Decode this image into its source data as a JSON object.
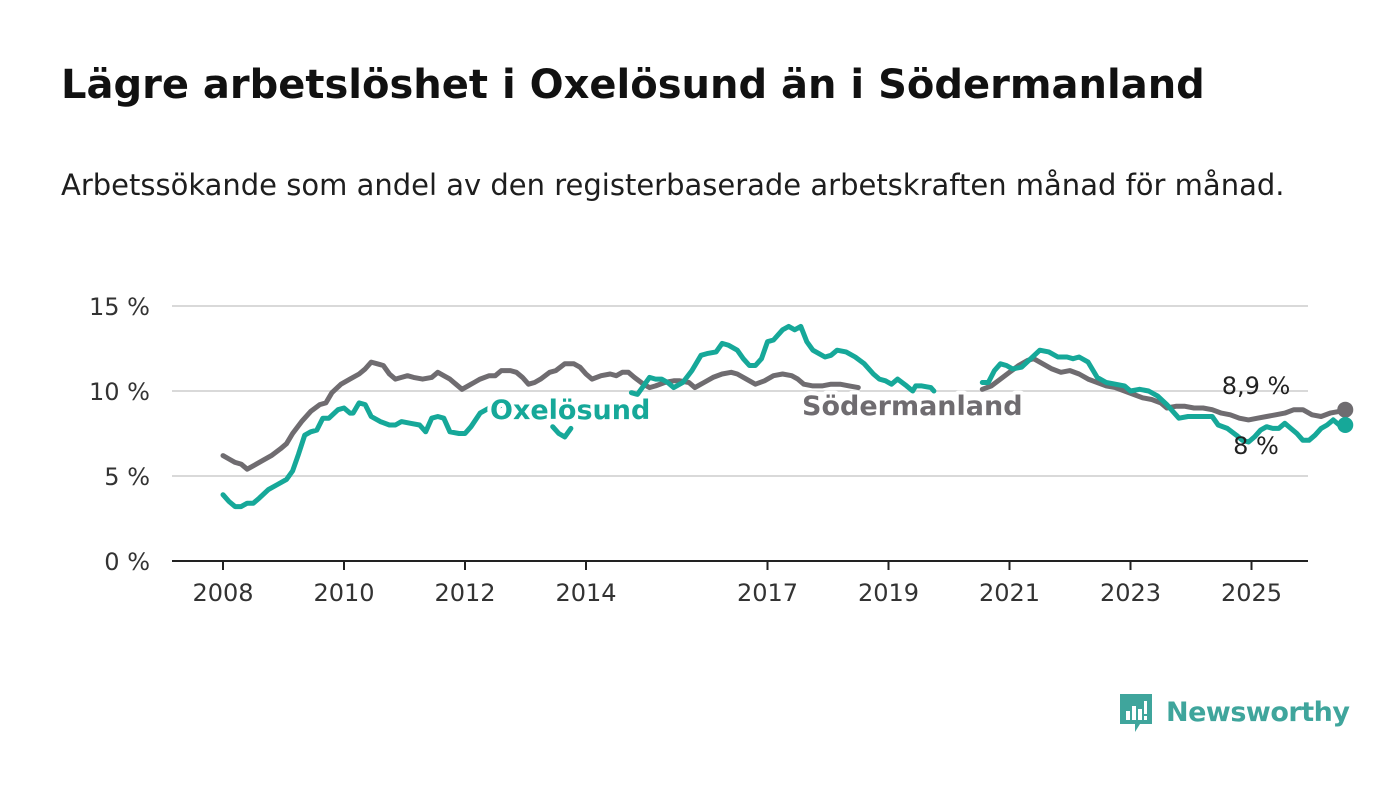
{
  "title": "Lägre arbetslöshet i Oxelösund än i Södermanland",
  "subtitle": "Arbetssökande som andel av den registerbaserade arbetskraften månad för månad.",
  "brand": {
    "name": "Newsworthy"
  },
  "colors": {
    "oxelosund": "#16a899",
    "sodermanland": "#6f6c70",
    "grid": "#d9d9d9",
    "axis": "#222222",
    "brand": "#3fa59c"
  },
  "chart_data": {
    "type": "line",
    "title": "Lägre arbetslöshet i Oxelösund än i Södermanland",
    "xlabel": "",
    "ylabel": "",
    "ylim": [
      0,
      15
    ],
    "xlim": [
      2007.75,
      2025.95
    ],
    "y_ticks": [
      {
        "value": 0,
        "label": "0 %"
      },
      {
        "value": 5,
        "label": "5 %"
      },
      {
        "value": 10,
        "label": "10 %"
      },
      {
        "value": 15,
        "label": "15 %"
      }
    ],
    "x_ticks": [
      "2008",
      "2010",
      "2012",
      "2014",
      "2017",
      "2019",
      "2021",
      "2023",
      "2025"
    ],
    "grid": true,
    "series": [
      {
        "name": "Oxelösund",
        "color": "#16a899",
        "points": [
          [
            2008.0,
            3.9
          ],
          [
            2008.1,
            3.5
          ],
          [
            2008.2,
            3.2
          ],
          [
            2008.3,
            3.2
          ],
          [
            2008.4,
            3.4
          ],
          [
            2008.5,
            3.4
          ],
          [
            2008.6,
            3.7
          ],
          [
            2008.75,
            4.2
          ],
          [
            2008.9,
            4.5
          ],
          [
            2009.05,
            4.8
          ],
          [
            2009.15,
            5.3
          ],
          [
            2009.25,
            6.3
          ],
          [
            2009.35,
            7.4
          ],
          [
            2009.45,
            7.6
          ],
          [
            2009.55,
            7.7
          ],
          [
            2009.65,
            8.4
          ],
          [
            2009.75,
            8.4
          ],
          [
            2009.9,
            8.9
          ],
          [
            2010.0,
            9.0
          ],
          [
            2010.1,
            8.7
          ],
          [
            2010.15,
            8.7
          ],
          [
            2010.25,
            9.3
          ],
          [
            2010.35,
            9.2
          ],
          [
            2010.45,
            8.5
          ],
          [
            2010.6,
            8.2
          ],
          [
            2010.75,
            8.0
          ],
          [
            2010.85,
            8.0
          ],
          [
            2010.95,
            8.2
          ],
          [
            2011.1,
            8.1
          ],
          [
            2011.25,
            8.0
          ],
          [
            2011.35,
            7.6
          ],
          [
            2011.45,
            8.4
          ],
          [
            2011.55,
            8.5
          ],
          [
            2011.65,
            8.4
          ],
          [
            2011.75,
            7.6
          ],
          [
            2011.9,
            7.5
          ],
          [
            2012.0,
            7.5
          ],
          [
            2012.1,
            7.9
          ],
          [
            2012.25,
            8.7
          ],
          [
            2012.4,
            9.0
          ],
          [
            2012.5,
            8.9
          ],
          [
            2012.6,
            9.2
          ],
          [
            2012.7,
            9.1
          ],
          [
            2012.8,
            8.6
          ],
          [
            2012.9,
            8.5
          ],
          [
            null,
            null
          ],
          [
            2013.45,
            7.9
          ],
          [
            2013.55,
            7.5
          ],
          [
            2013.65,
            7.3
          ],
          [
            2013.75,
            7.8
          ],
          [
            null,
            null
          ],
          [
            2014.75,
            9.9
          ],
          [
            2014.85,
            9.8
          ],
          [
            2014.95,
            10.3
          ],
          [
            2015.05,
            10.8
          ],
          [
            2015.15,
            10.7
          ],
          [
            2015.25,
            10.7
          ],
          [
            2015.35,
            10.5
          ],
          [
            2015.45,
            10.2
          ],
          [
            2015.6,
            10.5
          ],
          [
            2015.75,
            11.2
          ],
          [
            2015.9,
            12.1
          ],
          [
            2016.0,
            12.2
          ],
          [
            2016.15,
            12.3
          ],
          [
            2016.25,
            12.8
          ],
          [
            2016.35,
            12.7
          ],
          [
            2016.5,
            12.4
          ],
          [
            2016.6,
            11.9
          ],
          [
            2016.7,
            11.5
          ],
          [
            2016.8,
            11.5
          ],
          [
            2016.9,
            11.9
          ],
          [
            2017.0,
            12.9
          ],
          [
            2017.1,
            13.0
          ],
          [
            2017.25,
            13.6
          ],
          [
            2017.35,
            13.8
          ],
          [
            2017.45,
            13.6
          ],
          [
            2017.55,
            13.8
          ],
          [
            2017.65,
            12.9
          ],
          [
            2017.75,
            12.4
          ],
          [
            2017.85,
            12.2
          ],
          [
            2017.95,
            12.0
          ],
          [
            2018.05,
            12.1
          ],
          [
            2018.15,
            12.4
          ],
          [
            2018.3,
            12.3
          ],
          [
            2018.45,
            12.0
          ],
          [
            2018.6,
            11.6
          ],
          [
            2018.75,
            11.0
          ],
          [
            2018.85,
            10.7
          ],
          [
            2018.95,
            10.6
          ],
          [
            2019.05,
            10.4
          ],
          [
            2019.15,
            10.7
          ],
          [
            2019.3,
            10.3
          ],
          [
            2019.4,
            10.0
          ],
          [
            2019.45,
            10.3
          ],
          [
            2019.55,
            10.3
          ],
          [
            2019.7,
            10.2
          ],
          [
            2019.75,
            10.0
          ],
          [
            null,
            null
          ],
          [
            2020.55,
            10.5
          ],
          [
            2020.65,
            10.5
          ],
          [
            2020.75,
            11.2
          ],
          [
            2020.85,
            11.6
          ],
          [
            2020.95,
            11.5
          ],
          [
            2021.05,
            11.3
          ],
          [
            2021.2,
            11.4
          ],
          [
            2021.35,
            11.9
          ],
          [
            2021.5,
            12.4
          ],
          [
            2021.65,
            12.3
          ],
          [
            2021.8,
            12.0
          ],
          [
            2021.95,
            12.0
          ],
          [
            2022.05,
            11.9
          ],
          [
            2022.15,
            12.0
          ],
          [
            2022.3,
            11.7
          ],
          [
            2022.45,
            10.8
          ],
          [
            2022.6,
            10.5
          ],
          [
            2022.75,
            10.4
          ],
          [
            2022.9,
            10.3
          ],
          [
            2023.0,
            10.0
          ],
          [
            2023.15,
            10.1
          ],
          [
            2023.3,
            10.0
          ],
          [
            2023.45,
            9.7
          ],
          [
            2023.6,
            9.2
          ],
          [
            2023.7,
            8.8
          ],
          [
            2023.8,
            8.4
          ],
          [
            2023.95,
            8.5
          ],
          [
            2024.1,
            8.5
          ],
          [
            2024.25,
            8.5
          ],
          [
            2024.35,
            8.5
          ],
          [
            2024.45,
            8.0
          ],
          [
            2024.6,
            7.8
          ],
          [
            2024.75,
            7.4
          ],
          [
            2024.85,
            7.1
          ],
          [
            2024.95,
            7.0
          ],
          [
            2025.05,
            7.3
          ],
          [
            2025.15,
            7.7
          ],
          [
            2025.25,
            7.9
          ],
          [
            2025.35,
            7.8
          ],
          [
            2025.45,
            7.8
          ],
          [
            2025.55,
            8.1
          ],
          [
            2025.65,
            7.8
          ],
          [
            2025.75,
            7.5
          ],
          [
            2025.85,
            7.1
          ],
          [
            2025.95,
            7.1
          ],
          [
            2026.05,
            7.4
          ],
          [
            2026.15,
            7.8
          ],
          [
            2026.25,
            8.0
          ],
          [
            2026.35,
            8.3
          ],
          [
            2026.45,
            8.0
          ],
          [
            2026.55,
            8.0
          ]
        ],
        "label": "Oxelösund",
        "last_value_label": "8 %"
      },
      {
        "name": "Södermanland",
        "color": "#6f6c70",
        "points": [
          [
            2008.0,
            6.2
          ],
          [
            2008.1,
            6.0
          ],
          [
            2008.2,
            5.8
          ],
          [
            2008.3,
            5.7
          ],
          [
            2008.4,
            5.4
          ],
          [
            2008.5,
            5.6
          ],
          [
            2008.65,
            5.9
          ],
          [
            2008.8,
            6.2
          ],
          [
            2008.95,
            6.6
          ],
          [
            2009.05,
            6.9
          ],
          [
            2009.15,
            7.5
          ],
          [
            2009.3,
            8.2
          ],
          [
            2009.45,
            8.8
          ],
          [
            2009.6,
            9.2
          ],
          [
            2009.7,
            9.3
          ],
          [
            2009.8,
            9.9
          ],
          [
            2009.95,
            10.4
          ],
          [
            2010.1,
            10.7
          ],
          [
            2010.25,
            11.0
          ],
          [
            2010.35,
            11.3
          ],
          [
            2010.45,
            11.7
          ],
          [
            2010.55,
            11.6
          ],
          [
            2010.65,
            11.5
          ],
          [
            2010.75,
            11.0
          ],
          [
            2010.85,
            10.7
          ],
          [
            2010.95,
            10.8
          ],
          [
            2011.05,
            10.9
          ],
          [
            2011.15,
            10.8
          ],
          [
            2011.3,
            10.7
          ],
          [
            2011.45,
            10.8
          ],
          [
            2011.55,
            11.1
          ],
          [
            2011.65,
            10.9
          ],
          [
            2011.75,
            10.7
          ],
          [
            2011.85,
            10.4
          ],
          [
            2011.95,
            10.1
          ],
          [
            2012.05,
            10.3
          ],
          [
            2012.15,
            10.5
          ],
          [
            2012.25,
            10.7
          ],
          [
            2012.4,
            10.9
          ],
          [
            2012.5,
            10.9
          ],
          [
            2012.6,
            11.2
          ],
          [
            2012.75,
            11.2
          ],
          [
            2012.85,
            11.1
          ],
          [
            2012.95,
            10.8
          ],
          [
            2013.05,
            10.4
          ],
          [
            2013.15,
            10.5
          ],
          [
            2013.25,
            10.7
          ],
          [
            2013.4,
            11.1
          ],
          [
            2013.5,
            11.2
          ],
          [
            2013.65,
            11.6
          ],
          [
            2013.8,
            11.6
          ],
          [
            2013.9,
            11.4
          ],
          [
            2014.0,
            11.0
          ],
          [
            2014.1,
            10.7
          ],
          [
            2014.25,
            10.9
          ],
          [
            2014.4,
            11.0
          ],
          [
            2014.5,
            10.9
          ],
          [
            2014.6,
            11.1
          ],
          [
            2014.7,
            11.1
          ],
          [
            2014.8,
            10.8
          ],
          [
            2014.95,
            10.4
          ],
          [
            2015.05,
            10.2
          ],
          [
            2015.15,
            10.3
          ],
          [
            2015.3,
            10.5
          ],
          [
            2015.45,
            10.6
          ],
          [
            2015.55,
            10.6
          ],
          [
            2015.7,
            10.5
          ],
          [
            2015.8,
            10.2
          ],
          [
            2015.95,
            10.5
          ],
          [
            2016.1,
            10.8
          ],
          [
            2016.25,
            11.0
          ],
          [
            2016.4,
            11.1
          ],
          [
            2016.5,
            11.0
          ],
          [
            2016.65,
            10.7
          ],
          [
            2016.8,
            10.4
          ],
          [
            2016.95,
            10.6
          ],
          [
            2017.1,
            10.9
          ],
          [
            2017.25,
            11.0
          ],
          [
            2017.4,
            10.9
          ],
          [
            2017.5,
            10.7
          ],
          [
            2017.6,
            10.4
          ],
          [
            2017.75,
            10.3
          ],
          [
            2017.9,
            10.3
          ],
          [
            2018.05,
            10.4
          ],
          [
            2018.2,
            10.4
          ],
          [
            2018.35,
            10.3
          ],
          [
            2018.5,
            10.2
          ],
          [
            null,
            null
          ],
          [
            2020.55,
            10.1
          ],
          [
            2020.7,
            10.3
          ],
          [
            2020.85,
            10.7
          ],
          [
            2021.0,
            11.1
          ],
          [
            2021.15,
            11.5
          ],
          [
            2021.3,
            11.8
          ],
          [
            2021.4,
            11.9
          ],
          [
            2021.55,
            11.6
          ],
          [
            2021.7,
            11.3
          ],
          [
            2021.85,
            11.1
          ],
          [
            2022.0,
            11.2
          ],
          [
            2022.15,
            11.0
          ],
          [
            2022.3,
            10.7
          ],
          [
            2022.45,
            10.5
          ],
          [
            2022.6,
            10.3
          ],
          [
            2022.75,
            10.2
          ],
          [
            2022.9,
            10.0
          ],
          [
            2023.05,
            9.8
          ],
          [
            2023.2,
            9.6
          ],
          [
            2023.35,
            9.5
          ],
          [
            2023.5,
            9.3
          ],
          [
            2023.6,
            9.0
          ],
          [
            2023.75,
            9.1
          ],
          [
            2023.9,
            9.1
          ],
          [
            2024.05,
            9.0
          ],
          [
            2024.2,
            9.0
          ],
          [
            2024.35,
            8.9
          ],
          [
            2024.5,
            8.7
          ],
          [
            2024.65,
            8.6
          ],
          [
            2024.8,
            8.4
          ],
          [
            2024.95,
            8.3
          ],
          [
            2025.1,
            8.4
          ],
          [
            2025.25,
            8.5
          ],
          [
            2025.4,
            8.6
          ],
          [
            2025.55,
            8.7
          ],
          [
            2025.7,
            8.9
          ],
          [
            2025.85,
            8.9
          ],
          [
            2026.0,
            8.6
          ],
          [
            2026.15,
            8.5
          ],
          [
            2026.3,
            8.7
          ],
          [
            2026.45,
            8.8
          ],
          [
            2026.55,
            8.9
          ]
        ],
        "label": "Södermanland",
        "last_value_label": "8,9 %"
      }
    ]
  }
}
